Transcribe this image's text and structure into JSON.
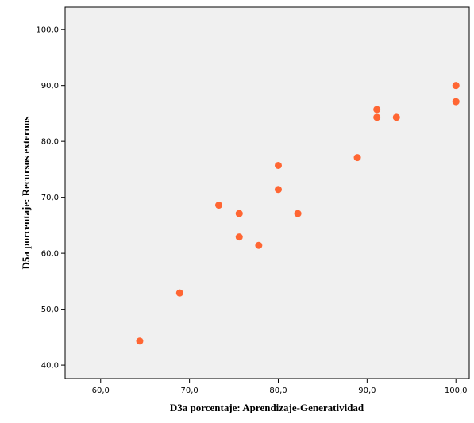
{
  "chart_data": {
    "type": "scatter",
    "xlabel": "D3a porcentaje: Aprendizaje-Generatividad",
    "ylabel": "D5a porcentaje: Recursos externos",
    "xlim": [
      56.0,
      101.5
    ],
    "ylim": [
      37.6,
      104.0
    ],
    "x_ticks": [
      60,
      70,
      80,
      90,
      100
    ],
    "y_ticks": [
      40,
      50,
      60,
      70,
      80,
      90,
      100
    ],
    "x_tick_labels": [
      "60,0",
      "70,0",
      "80,0",
      "90,0",
      "100,0"
    ],
    "y_tick_labels": [
      "40,0",
      "50,0",
      "60,0",
      "70,0",
      "80,0",
      "90,0",
      "100,0"
    ],
    "grid": false,
    "background_color": "#f0f0f0",
    "marker_color": "#ff6633",
    "points": [
      {
        "x": 64.4,
        "y": 44.3
      },
      {
        "x": 68.9,
        "y": 52.9
      },
      {
        "x": 73.3,
        "y": 68.6
      },
      {
        "x": 75.6,
        "y": 67.1
      },
      {
        "x": 75.6,
        "y": 62.9
      },
      {
        "x": 77.8,
        "y": 61.4
      },
      {
        "x": 80.0,
        "y": 75.7
      },
      {
        "x": 80.0,
        "y": 71.4
      },
      {
        "x": 82.2,
        "y": 67.1
      },
      {
        "x": 88.9,
        "y": 77.1
      },
      {
        "x": 91.1,
        "y": 85.7
      },
      {
        "x": 91.1,
        "y": 84.3
      },
      {
        "x": 93.3,
        "y": 84.3
      },
      {
        "x": 100.0,
        "y": 90.0
      },
      {
        "x": 100.0,
        "y": 87.1
      }
    ]
  }
}
